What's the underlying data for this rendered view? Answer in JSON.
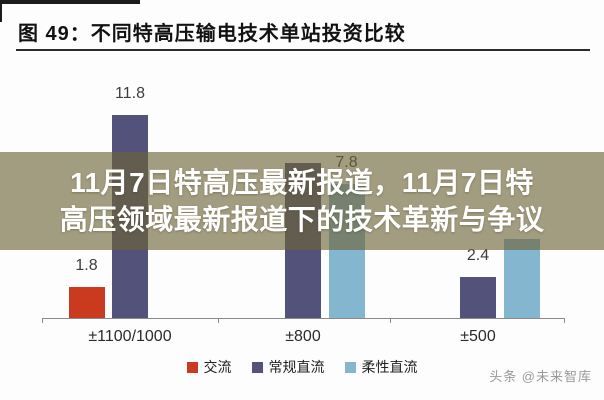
{
  "figure": {
    "title": "图 49：不同特高压输电技术单站投资比较",
    "watermark": "头条 @未来智库"
  },
  "overlay": {
    "line1": "11月7日特高压最新报道，11月7日特",
    "line2": "高压领域最新报道下的技术革新与争议"
  },
  "chart_data": {
    "type": "bar",
    "title": "图 49：不同特高压输电技术单站投资比较",
    "categories": [
      "±1100/1000",
      "±800",
      "±500"
    ],
    "series": [
      {
        "name": "交流",
        "color": "#c93a1f",
        "values": [
          1.8,
          null,
          null
        ],
        "visible_labels": [
          "1.8",
          null,
          null
        ]
      },
      {
        "name": "常规直流",
        "color": "#52527b",
        "values": [
          11.8,
          9.0,
          2.4
        ],
        "visible_labels": [
          "11.8",
          null,
          "2.4"
        ]
      },
      {
        "name": "柔性直流",
        "color": "#85b6cf",
        "values": [
          null,
          7.8,
          4.6
        ],
        "visible_labels": [
          null,
          "7.8",
          null
        ]
      }
    ],
    "ylim": [
      0,
      13
    ],
    "grid": false,
    "legend_position": "bottom",
    "value_labels_shown": [
      "11.8",
      "1.8",
      "7.8",
      "2.4"
    ]
  }
}
